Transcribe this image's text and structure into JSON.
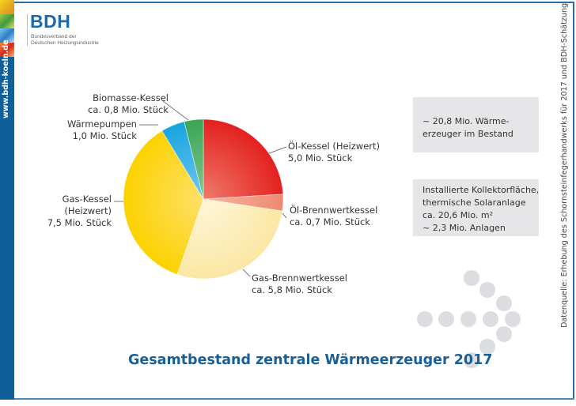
{
  "logo": {
    "mark": "BDH",
    "subtitle_line1": "Bundesverband der",
    "subtitle_line2": "Deutschen Heizungsindustrie"
  },
  "sidebar": {
    "url": "www.bdh-koeln.de"
  },
  "source_note": "Datenquelle: Erhebung des Schornsteinfegerhandwerks für 2017 und BDH-Schätzung",
  "info_boxes": [
    {
      "lines": [
        "~ 20,8 Mio. Wärme-",
        "erzeuger im Bestand"
      ]
    },
    {
      "lines": [
        "Installierte Kollektorfläche,",
        "thermische Solaranlage",
        "ca. 20,6 Mio. m²",
        "~ 2,3 Mio. Anlagen"
      ]
    }
  ],
  "colors": {
    "brand_blue": "#0e5f9a",
    "title_blue": "#1a5f96",
    "box_gray": "#e6e6e8",
    "dot_gray": "#dcdde0"
  },
  "chart_data": {
    "type": "pie",
    "title": "Gesamtbestand zentrale Wärmeerzeuger 2017",
    "unit": "Mio. Stück",
    "total": 20.8,
    "start": "top",
    "direction": "clockwise",
    "slices": [
      {
        "name": "Öl-Kessel (Heizwert)",
        "value": 5.0,
        "label_line1": "Öl-Kessel (Heizwert)",
        "label_line2": "5,0 Mio. Stück",
        "color": "#e3211f",
        "color_light": "#f07a6a"
      },
      {
        "name": "Öl-Brennwertkessel",
        "value": 0.7,
        "label_line1": "Öl-Brennwertkessel",
        "label_line2": "ca. 0,7 Mio. Stück",
        "color": "#ee8a70",
        "color_light": "#f6b5a2"
      },
      {
        "name": "Gas-Brennwertkessel",
        "value": 5.8,
        "label_line1": "Gas-Brennwertkessel",
        "label_line2": "ca. 5,8 Mio. Stück",
        "color": "#fbe7a4",
        "color_light": "#fff6d9"
      },
      {
        "name": "Gas-Kessel (Heizwert)",
        "value": 7.5,
        "label_line1": "Gas-Kessel",
        "label_line2": "(Heizwert)",
        "label_line3": "7,5 Mio. Stück",
        "color": "#fcd200",
        "color_light": "#fde06a"
      },
      {
        "name": "Wärmepumpen",
        "value": 1.0,
        "label_line1": "Wärmepumpen",
        "label_line2": "1,0 Mio. Stück",
        "color": "#18a4e0",
        "color_light": "#6fc8ef"
      },
      {
        "name": "Biomasse-Kessel",
        "value": 0.8,
        "label_line1": "Biomasse-Kessel",
        "label_line2": "ca. 0,8 Mio. Stück",
        "color": "#3aa655",
        "color_light": "#82c68f"
      }
    ]
  }
}
